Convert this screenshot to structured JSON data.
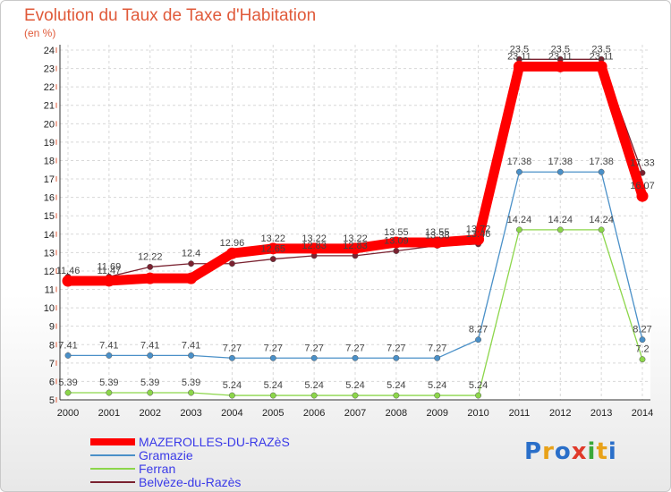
{
  "chart_data": {
    "type": "line",
    "title": "Evolution du Taux de Taxe d'Habitation",
    "subtitle": "(en %)",
    "xlabel": "",
    "ylabel": "",
    "ylim": [
      5,
      24
    ],
    "categories": [
      "2000",
      "2001",
      "2002",
      "2003",
      "2004",
      "2005",
      "2006",
      "2007",
      "2008",
      "2009",
      "2010",
      "2011",
      "2012",
      "2013",
      "2014"
    ],
    "series": [
      {
        "name": "MAZEROLLES-DU-RAZèS",
        "color": "#ff0000",
        "values": [
          11.46,
          11.47,
          11.6,
          11.6,
          12.96,
          13.22,
          13.22,
          13.22,
          13.55,
          13.55,
          13.72,
          23.11,
          23.11,
          23.11,
          16.07
        ],
        "labels": [
          "11.46",
          "11.47",
          "",
          "",
          "12.96",
          "13.22",
          "13.22",
          "13.22",
          "13.55",
          "13.55",
          "13.72",
          "23.11",
          "23.11",
          "23.11",
          "16.07"
        ]
      },
      {
        "name": "Gramazie",
        "color": "#4a90c8",
        "values": [
          7.41,
          7.41,
          7.41,
          7.41,
          7.27,
          7.27,
          7.27,
          7.27,
          7.27,
          7.27,
          8.27,
          17.38,
          17.38,
          17.38,
          8.27
        ],
        "labels": [
          "7.41",
          "7.41",
          "7.41",
          "7.41",
          "7.27",
          "7.27",
          "7.27",
          "7.27",
          "7.27",
          "7.27",
          "8.27",
          "17.38",
          "17.38",
          "17.38",
          "8.27"
        ]
      },
      {
        "name": "Ferran",
        "color": "#8cd64a",
        "values": [
          5.39,
          5.39,
          5.39,
          5.39,
          5.24,
          5.24,
          5.24,
          5.24,
          5.24,
          5.24,
          5.24,
          14.24,
          14.24,
          14.24,
          7.2
        ],
        "labels": [
          "5.39",
          "5.39",
          "5.39",
          "5.39",
          "5.24",
          "5.24",
          "5.24",
          "5.24",
          "5.24",
          "5.24",
          "5.24",
          "14.24",
          "14.24",
          "14.24",
          "7.2"
        ]
      },
      {
        "name": "Belvèze-du-Razès",
        "color": "#7a2230",
        "values": [
          11.69,
          11.69,
          12.22,
          12.4,
          12.4,
          12.65,
          12.83,
          12.83,
          13.09,
          13.38,
          13.46,
          23.5,
          23.5,
          23.5,
          17.33
        ],
        "labels": [
          "",
          "11.69",
          "12.22",
          "12.4",
          "",
          "12.65",
          "12.83",
          "12.83",
          "13.09",
          "13.38",
          "13.46",
          "23.5",
          "23.5",
          "23.5",
          "17.33"
        ]
      }
    ]
  },
  "brand": {
    "name": "Proxiti",
    "letters": [
      "P",
      "r",
      "o",
      "x",
      "i",
      "t",
      "i"
    ],
    "colors": [
      "#2a6fc9",
      "#e8a21a",
      "#2a6fc9",
      "#e03a2a",
      "#3aa83a",
      "#e8a21a",
      "#2a6fc9"
    ]
  }
}
